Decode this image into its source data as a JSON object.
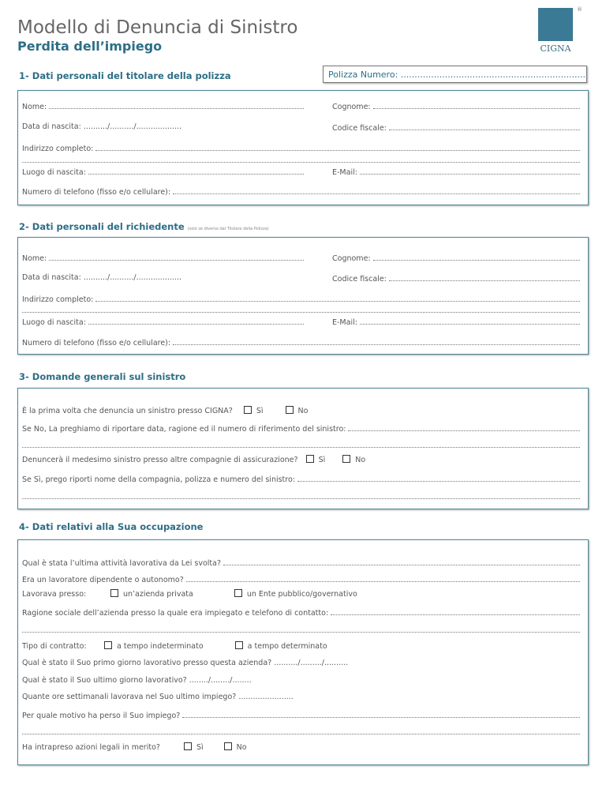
{
  "header": {
    "title": "Modello di Denuncia di Sistro",
    "subtitle": "Perdita dell’impiego",
    "logo_text": "CIGNA",
    "registered": "®"
  },
  "polizza": {
    "label": "Polizza Numero: ........................................................................"
  },
  "s1": {
    "title": "1- Dati personali del titolare della polizza",
    "nome": "Nome:",
    "cognome": "Cognome:",
    "data": "Data di nascita: ........../........../...................",
    "cf": "Codice fiscale:",
    "indirizzo": "Indirizzo completo:",
    "luogo": "Luogo di nascita:",
    "email": "E-Mail:",
    "tel": "Numero di telefono (fisso e/o cellulare):"
  },
  "s2": {
    "title": "2- Dati personali del richiedente",
    "note": "(solo se diverso dal Titolare della Polizza)",
    "nome": "Nome:",
    "cognome": "Cognome:",
    "data": "Data di nascita: ........../........../...................",
    "cf": "Codice fiscale:",
    "indirizzo": "Indirizzo completo:",
    "luogo": "Luogo di nascita:",
    "email": "E-Mail:",
    "tel": "Numero di telefono (fisso e/o cellulare):"
  },
  "s3": {
    "title": "3- Domande generali sul sinistro",
    "q1": "È la prima volta che denuncia un sinistro presso CIGNA?",
    "si": "Sì",
    "no": "No",
    "q1b": "Se No, La preghiamo di riportare data, ragione ed il numero di riferimento del sinistro:",
    "q2": "Denuncerà il medesimo sinistro presso altre compagnie di assicurazione?",
    "q2b": "Se Sì, prego riporti nome della compagnia, polizza e numero del sinistro:"
  },
  "s4": {
    "title": "4- Dati relativi alla Sua occupazione",
    "q1": "Qual è stata l’ultima attività lavorativa da Lei svolta?",
    "q2": "Era un lavoratore dipendente o autonomo?",
    "q3": "Lavorava presso:",
    "o1": "un’azienda privata",
    "o2": "un  Ente pubblico/governativo",
    "q4": "Ragione sociale dell’azienda  presso la quale era impiegato e telefono di contatto:",
    "q5": "Tipo di contratto:",
    "o3": "a tempo indeterminato",
    "o4": "a tempo determinato",
    "q6": "Qual è stato il Suo primo giorno lavorativo presso questa azienda? ........../........./..........",
    "q7": "Qual è stato il Suo ultimo giorno lavorativo? ......../......../........",
    "q8": "Quante ore settimanali lavorava nel Suo ultimo impiego? .......................",
    "q9": "Per quale motivo ha perso il Suo impiego?",
    "q10": "Ha intrapreso azioni legali in merito?",
    "si": "Sì",
    "no": "No"
  }
}
